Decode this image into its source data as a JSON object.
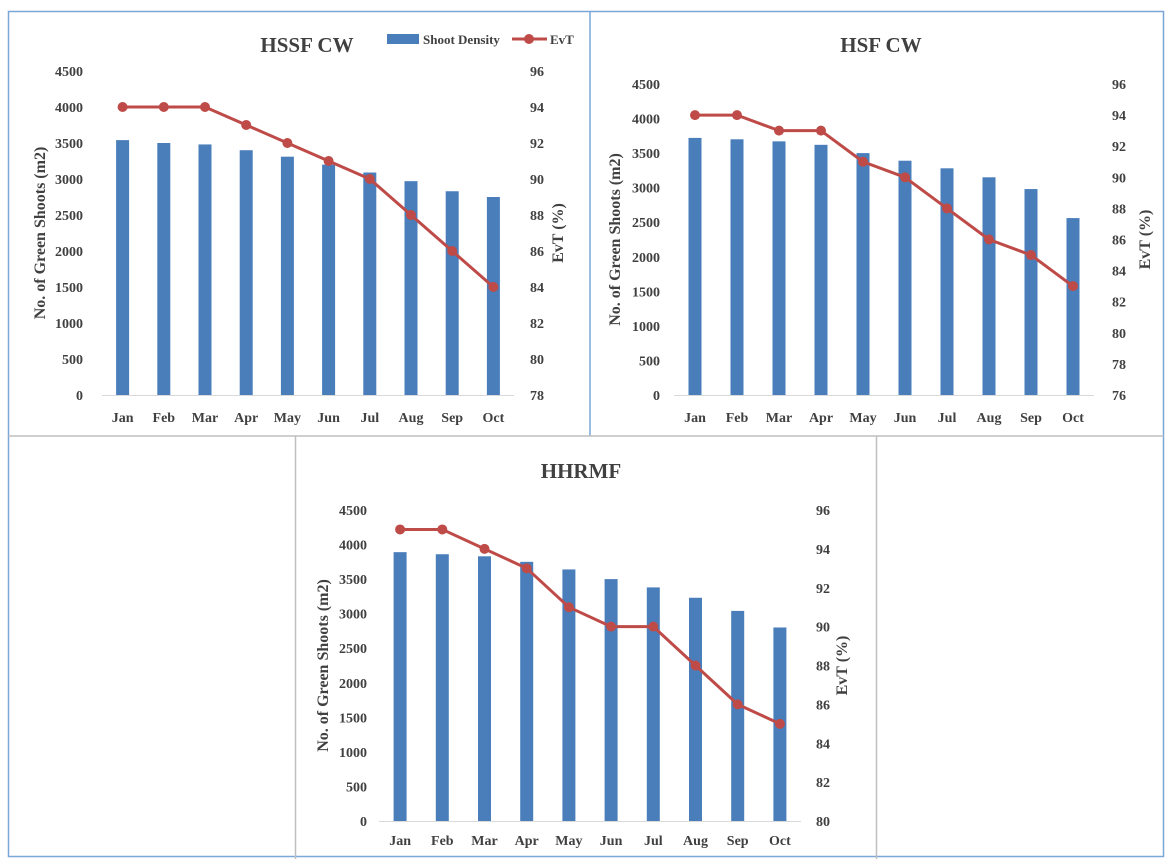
{
  "colors": {
    "bar": "#4A7EBB",
    "line": "#BE4B48",
    "frame": "#7AA7D8",
    "text": "#404040"
  },
  "chart_data": [
    {
      "type": "bar",
      "title": "HSSF CW",
      "categories": [
        "Jan",
        "Feb",
        "Mar",
        "Apr",
        "May",
        "Jun",
        "Jul",
        "Aug",
        "Sep",
        "Oct"
      ],
      "ylabel": "No. of Green Shoots (m2)",
      "y2label": "EvT (%)",
      "ylim": [
        0,
        4500
      ],
      "y2lim": [
        78,
        96
      ],
      "yticks": [
        "0",
        "500",
        "1000",
        "1500",
        "2000",
        "2500",
        "3000",
        "3500",
        "4000",
        "4500"
      ],
      "y2ticks": [
        "78",
        "80",
        "82",
        "84",
        "86",
        "88",
        "90",
        "92",
        "94",
        "96"
      ],
      "legend": {
        "position": "top-right",
        "entries": [
          "Shoot Density",
          "EvT"
        ]
      },
      "series": [
        {
          "name": "Shoot Density",
          "type": "bar",
          "axis": "left",
          "values": [
            3540,
            3500,
            3480,
            3400,
            3310,
            3200,
            3090,
            2970,
            2830,
            2750
          ]
        },
        {
          "name": "EvT",
          "type": "line",
          "axis": "right",
          "values": [
            94,
            94,
            94,
            93,
            92,
            91,
            90,
            88,
            86,
            84
          ]
        }
      ]
    },
    {
      "type": "bar",
      "title": "HSF CW",
      "categories": [
        "Jan",
        "Feb",
        "Mar",
        "Apr",
        "May",
        "Jun",
        "Jul",
        "Aug",
        "Sep",
        "Oct"
      ],
      "ylabel": "No. of Green Shoots (m2)",
      "y2label": "EvT (%)",
      "ylim": [
        0,
        4500
      ],
      "y2lim": [
        76,
        96
      ],
      "yticks": [
        "0",
        "500",
        "1000",
        "1500",
        "2000",
        "2500",
        "3000",
        "3500",
        "4000",
        "4500"
      ],
      "y2ticks": [
        "76",
        "78",
        "80",
        "82",
        "84",
        "86",
        "88",
        "90",
        "92",
        "94",
        "96"
      ],
      "series": [
        {
          "name": "Shoot Density",
          "type": "bar",
          "axis": "left",
          "values": [
            3720,
            3700,
            3670,
            3620,
            3500,
            3390,
            3280,
            3150,
            2980,
            2560
          ]
        },
        {
          "name": "EvT",
          "type": "line",
          "axis": "right",
          "values": [
            94,
            94,
            93,
            93,
            91,
            90,
            88,
            86,
            85,
            83
          ]
        }
      ]
    },
    {
      "type": "bar",
      "title": "HHRMF",
      "categories": [
        "Jan",
        "Feb",
        "Mar",
        "Apr",
        "May",
        "Jun",
        "Jul",
        "Aug",
        "Sep",
        "Oct"
      ],
      "ylabel": "No. of Green Shoots (m2)",
      "y2label": "EvT (%)",
      "ylim": [
        0,
        4500
      ],
      "y2lim": [
        80,
        96
      ],
      "yticks": [
        "0",
        "500",
        "1000",
        "1500",
        "2000",
        "2500",
        "3000",
        "3500",
        "4000",
        "4500"
      ],
      "y2ticks": [
        "80",
        "82",
        "84",
        "86",
        "88",
        "90",
        "92",
        "94",
        "96"
      ],
      "series": [
        {
          "name": "Shoot Density",
          "type": "bar",
          "axis": "left",
          "values": [
            3890,
            3860,
            3830,
            3750,
            3640,
            3500,
            3380,
            3230,
            3040,
            2800
          ]
        },
        {
          "name": "EvT",
          "type": "line",
          "axis": "right",
          "values": [
            95,
            95,
            94,
            93,
            91,
            90,
            90,
            88,
            86,
            85
          ]
        }
      ]
    }
  ]
}
